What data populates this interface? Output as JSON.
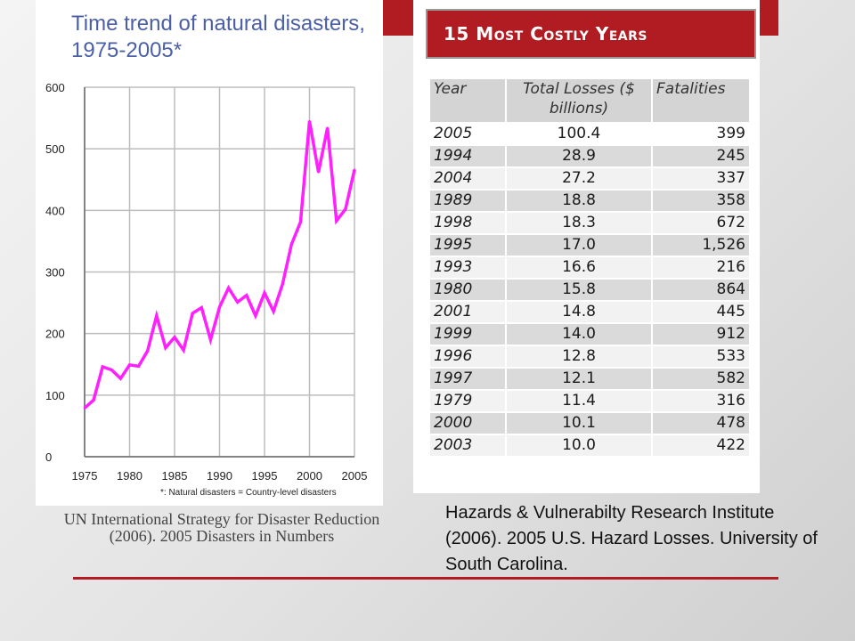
{
  "colors": {
    "accent": "#b01c21",
    "series_line": "#ff1fff",
    "title_blue": "#4a5fa6"
  },
  "chart_panel": {
    "title": "Time trend of natural disasters, 1975-2005*",
    "footnote": "*: Natural disasters = Country-level disasters",
    "citation": "UN International Strategy for Disaster Reduction (2006).  2005 Disasters in Numbers"
  },
  "chart_data": {
    "type": "line",
    "title": "Time trend of natural disasters, 1975-2005*",
    "xlabel": "",
    "ylabel": "",
    "xlim": [
      1975,
      2005
    ],
    "ylim": [
      0,
      600
    ],
    "xticks": [
      "1975",
      "1980",
      "1985",
      "1990",
      "1995",
      "2000",
      "2005"
    ],
    "yticks": [
      "0",
      "100",
      "200",
      "300",
      "400",
      "500",
      "600"
    ],
    "grid": true,
    "legend": "none",
    "series": [
      {
        "x": [
          1975,
          1976,
          1977,
          1978,
          1979,
          1980,
          1981,
          1982,
          1983,
          1984,
          1985,
          1986,
          1987,
          1988,
          1989,
          1990,
          1991,
          1992,
          1993,
          1994,
          1995,
          1996,
          1997,
          1998,
          1999,
          2000,
          2001,
          2002,
          2003,
          2004,
          2005
        ],
        "values": [
          79,
          92,
          146,
          141,
          127,
          149,
          147,
          172,
          229,
          177,
          194,
          173,
          233,
          242,
          190,
          243,
          274,
          251,
          262,
          229,
          266,
          236,
          280,
          345,
          381,
          545,
          462,
          534,
          383,
          402,
          466
        ]
      }
    ],
    "footnote": "*: Natural disasters = Country-level disasters"
  },
  "table_panel": {
    "banner_title": "15 Most Costly Years",
    "headers": {
      "year": "Year",
      "losses": "Total Losses ($ billions)",
      "fatalities": "Fatalities"
    },
    "rows": [
      {
        "year": "2005",
        "losses": "100.4",
        "fatalities": "399"
      },
      {
        "year": "1994",
        "losses": "28.9",
        "fatalities": "245"
      },
      {
        "year": "2004",
        "losses": "27.2",
        "fatalities": "337"
      },
      {
        "year": "1989",
        "losses": "18.8",
        "fatalities": "358"
      },
      {
        "year": "1998",
        "losses": "18.3",
        "fatalities": "672"
      },
      {
        "year": "1995",
        "losses": "17.0",
        "fatalities": "1,526"
      },
      {
        "year": "1993",
        "losses": "16.6",
        "fatalities": "216"
      },
      {
        "year": "1980",
        "losses": "15.8",
        "fatalities": "864"
      },
      {
        "year": "2001",
        "losses": "14.8",
        "fatalities": "445"
      },
      {
        "year": "1999",
        "losses": "14.0",
        "fatalities": "912"
      },
      {
        "year": "1996",
        "losses": "12.8",
        "fatalities": "533"
      },
      {
        "year": "1997",
        "losses": "12.1",
        "fatalities": "582"
      },
      {
        "year": "1979",
        "losses": "11.4",
        "fatalities": "316"
      },
      {
        "year": "2000",
        "losses": "10.1",
        "fatalities": "478"
      },
      {
        "year": "2003",
        "losses": "10.0",
        "fatalities": "422"
      }
    ],
    "citation": "Hazards & Vulnerabilty Research Institute (2006).  2005 U.S. Hazard Losses.  University of South Carolina."
  }
}
